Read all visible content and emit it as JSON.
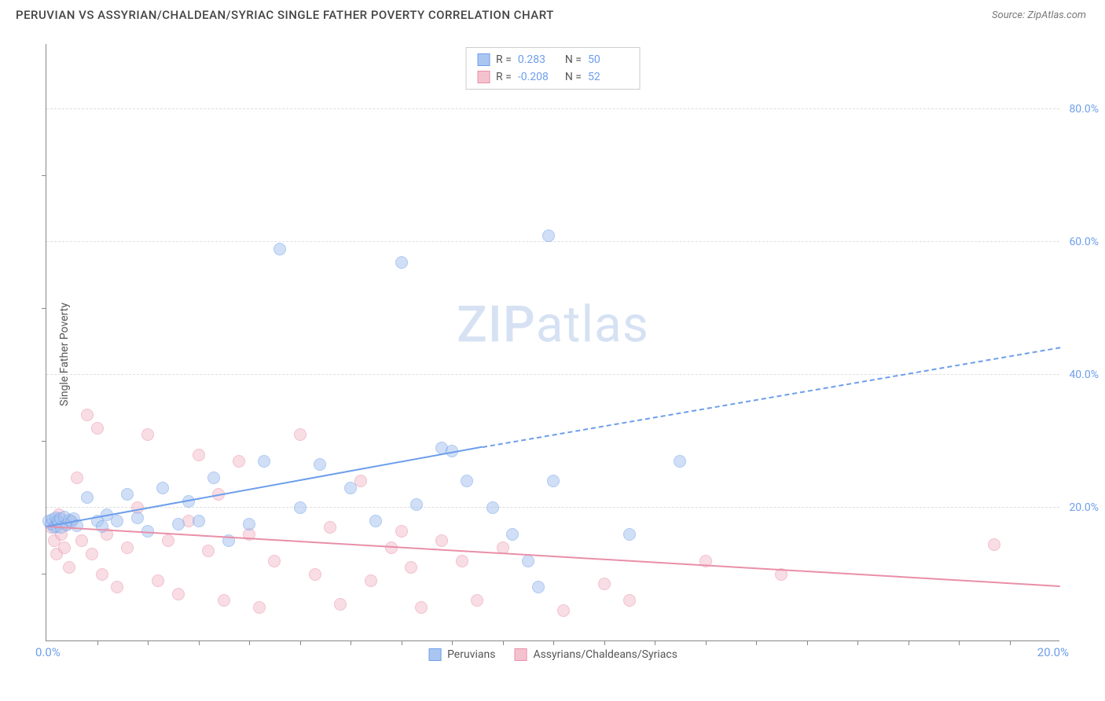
{
  "header": {
    "title": "PERUVIAN VS ASSYRIAN/CHALDEAN/SYRIAC SINGLE FATHER POVERTY CORRELATION CHART",
    "source": "Source: ZipAtlas.com"
  },
  "ylabel": "Single Father Poverty",
  "watermark": {
    "zip": "ZIP",
    "atlas": "atlas"
  },
  "chart": {
    "type": "scatter",
    "background_color": "#ffffff",
    "grid_color": "#dddddd",
    "axis_color": "#888888",
    "xlim": [
      0,
      20
    ],
    "ylim": [
      0,
      90
    ],
    "x_tick_labels": [
      "0.0%",
      "20.0%"
    ],
    "y_ticks": [
      20,
      40,
      60,
      80
    ],
    "y_tick_labels": [
      "20.0%",
      "40.0%",
      "60.0%",
      "80.0%"
    ],
    "x_minor_ticks": [
      1,
      2,
      3,
      4,
      5,
      6,
      7,
      8,
      9,
      10,
      11,
      12,
      13,
      14,
      15,
      16,
      17,
      18,
      19
    ],
    "y_minor_ticks": [
      10,
      30,
      50,
      70
    ],
    "marker_radius": 8,
    "marker_opacity_fill": 0.35,
    "series": {
      "peruvians": {
        "label": "Peruvians",
        "color_stroke": "#6d9eeb",
        "color_fill": "#aac6f0",
        "R_label": "R =",
        "R": "0.283",
        "N_label": "N =",
        "N": "50",
        "trend": {
          "x1": 0,
          "y1": 17,
          "x2_solid": 8.6,
          "y2_solid": 29,
          "x2": 20,
          "y2": 44,
          "width": 2.5
        },
        "points": [
          [
            0.05,
            18
          ],
          [
            0.1,
            17.5
          ],
          [
            0.12,
            18.2
          ],
          [
            0.15,
            17
          ],
          [
            0.18,
            18.5
          ],
          [
            0.2,
            17.2
          ],
          [
            0.22,
            18
          ],
          [
            0.25,
            17.8
          ],
          [
            0.28,
            18.3
          ],
          [
            0.3,
            17.1
          ],
          [
            0.35,
            18.6
          ],
          [
            0.4,
            17.4
          ],
          [
            0.45,
            18.1
          ],
          [
            0.5,
            17.9
          ],
          [
            0.55,
            18.4
          ],
          [
            0.6,
            17.3
          ],
          [
            0.8,
            21.5
          ],
          [
            1.0,
            18
          ],
          [
            1.1,
            17.2
          ],
          [
            1.2,
            19
          ],
          [
            1.4,
            18
          ],
          [
            1.6,
            22
          ],
          [
            1.8,
            18.5
          ],
          [
            2.0,
            16.5
          ],
          [
            2.3,
            23
          ],
          [
            2.6,
            17.5
          ],
          [
            2.8,
            21
          ],
          [
            3.0,
            18
          ],
          [
            3.3,
            24.5
          ],
          [
            3.6,
            15
          ],
          [
            4.0,
            17.5
          ],
          [
            4.3,
            27
          ],
          [
            4.6,
            59
          ],
          [
            5.0,
            20
          ],
          [
            5.4,
            26.5
          ],
          [
            6.0,
            23
          ],
          [
            6.5,
            18
          ],
          [
            7.0,
            57
          ],
          [
            7.3,
            20.5
          ],
          [
            7.8,
            29
          ],
          [
            8.0,
            28.5
          ],
          [
            8.3,
            24
          ],
          [
            8.8,
            20
          ],
          [
            9.2,
            16
          ],
          [
            9.5,
            12
          ],
          [
            9.7,
            8
          ],
          [
            9.9,
            61
          ],
          [
            10.0,
            24
          ],
          [
            11.5,
            16
          ],
          [
            12.5,
            27
          ]
        ]
      },
      "assyrians": {
        "label": "Assyrians/Chaldeans/Syriacs",
        "color_stroke": "#e98fa8",
        "color_fill": "#f4c2ce",
        "R_label": "R =",
        "R": "-0.208",
        "N_label": "N =",
        "N": "52",
        "trend": {
          "x1": 0,
          "y1": 17,
          "x2_solid": 20,
          "y2_solid": 8,
          "x2": 20,
          "y2": 8,
          "width": 2.5
        },
        "points": [
          [
            0.1,
            17
          ],
          [
            0.15,
            15
          ],
          [
            0.2,
            13
          ],
          [
            0.25,
            19
          ],
          [
            0.3,
            16
          ],
          [
            0.35,
            14
          ],
          [
            0.4,
            17.5
          ],
          [
            0.45,
            11
          ],
          [
            0.5,
            18
          ],
          [
            0.6,
            24.5
          ],
          [
            0.7,
            15
          ],
          [
            0.8,
            34
          ],
          [
            0.9,
            13
          ],
          [
            1.0,
            32
          ],
          [
            1.1,
            10
          ],
          [
            1.2,
            16
          ],
          [
            1.4,
            8
          ],
          [
            1.6,
            14
          ],
          [
            1.8,
            20
          ],
          [
            2.0,
            31
          ],
          [
            2.2,
            9
          ],
          [
            2.4,
            15
          ],
          [
            2.6,
            7
          ],
          [
            2.8,
            18
          ],
          [
            3.0,
            28
          ],
          [
            3.2,
            13.5
          ],
          [
            3.4,
            22
          ],
          [
            3.5,
            6
          ],
          [
            3.8,
            27
          ],
          [
            4.0,
            16
          ],
          [
            4.2,
            5
          ],
          [
            4.5,
            12
          ],
          [
            5.0,
            31
          ],
          [
            5.3,
            10
          ],
          [
            5.6,
            17
          ],
          [
            5.8,
            5.5
          ],
          [
            6.2,
            24
          ],
          [
            6.4,
            9
          ],
          [
            6.8,
            14
          ],
          [
            7.0,
            16.5
          ],
          [
            7.2,
            11
          ],
          [
            7.4,
            5
          ],
          [
            7.8,
            15
          ],
          [
            8.2,
            12
          ],
          [
            8.5,
            6
          ],
          [
            9.0,
            14
          ],
          [
            10.2,
            4.5
          ],
          [
            11.0,
            8.5
          ],
          [
            11.5,
            6
          ],
          [
            13.0,
            12
          ],
          [
            14.5,
            10
          ],
          [
            18.7,
            14.5
          ]
        ]
      }
    }
  }
}
